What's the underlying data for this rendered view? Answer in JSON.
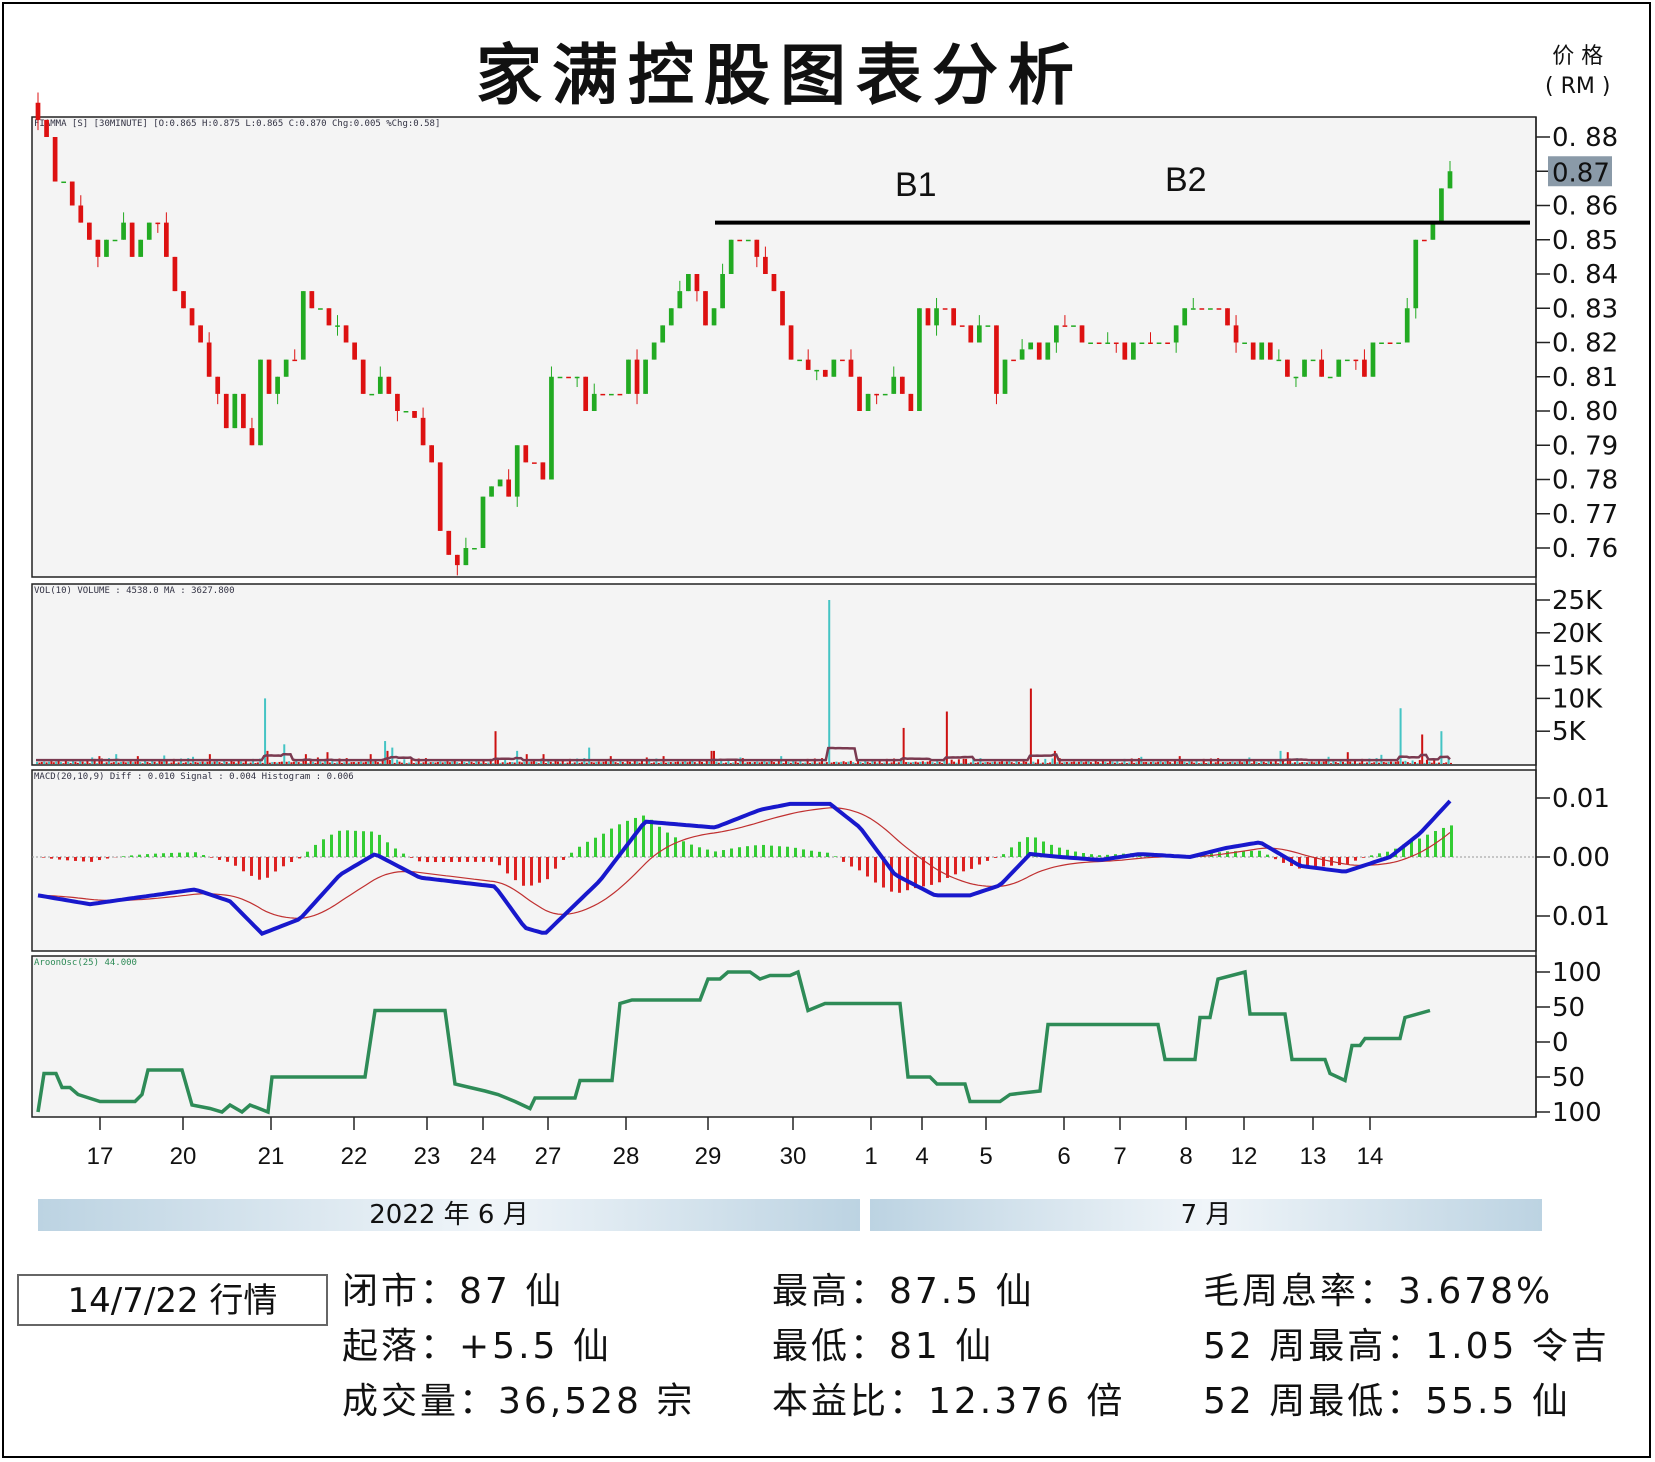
{
  "title": "家满控股图表分析",
  "price_axis_label": [
    "价 格",
    "( RM )"
  ],
  "chart_data": [
    {
      "type": "candlestick",
      "header": "FIAMMA [S] [30MINUTE] [O:0.865 H:0.875 L:0.865 C:0.870 Chg:0.005 %Chg:0.58]",
      "yticks": [
        "0.88",
        "0.87",
        "0.86",
        "0.85",
        "0.84",
        "0.83",
        "0.82",
        "0.81",
        "0.80",
        "0.79",
        "0.78",
        "0.77",
        "0.76"
      ],
      "ylim": [
        0.7555,
        0.8835
      ],
      "last_price": "0.87",
      "annotations": [
        "B1",
        "B2"
      ],
      "resistance_level": 0.855,
      "closes": [
        0.885,
        0.88,
        0.867,
        0.867,
        0.86,
        0.855,
        0.85,
        0.845,
        0.85,
        0.85,
        0.855,
        0.845,
        0.85,
        0.855,
        0.855,
        0.845,
        0.835,
        0.83,
        0.825,
        0.82,
        0.81,
        0.805,
        0.795,
        0.805,
        0.795,
        0.79,
        0.815,
        0.805,
        0.81,
        0.815,
        0.815,
        0.835,
        0.83,
        0.83,
        0.825,
        0.825,
        0.82,
        0.815,
        0.805,
        0.805,
        0.81,
        0.805,
        0.8,
        0.8,
        0.798,
        0.79,
        0.785,
        0.765,
        0.758,
        0.755,
        0.76,
        0.76,
        0.775,
        0.778,
        0.78,
        0.775,
        0.79,
        0.785,
        0.785,
        0.78,
        0.81,
        0.81,
        0.81,
        0.81,
        0.8,
        0.805,
        0.805,
        0.805,
        0.805,
        0.815,
        0.805,
        0.815,
        0.82,
        0.825,
        0.83,
        0.835,
        0.84,
        0.835,
        0.825,
        0.83,
        0.84,
        0.85,
        0.85,
        0.85,
        0.845,
        0.84,
        0.835,
        0.825,
        0.815,
        0.815,
        0.812,
        0.812,
        0.81,
        0.815,
        0.815,
        0.81,
        0.8,
        0.805,
        0.805,
        0.805,
        0.81,
        0.805,
        0.8,
        0.83,
        0.825,
        0.83,
        0.83,
        0.825,
        0.825,
        0.82,
        0.825,
        0.825,
        0.805,
        0.815,
        0.815,
        0.818,
        0.82,
        0.815,
        0.82,
        0.825,
        0.825,
        0.825,
        0.82,
        0.82,
        0.82,
        0.82,
        0.82,
        0.815,
        0.82,
        0.82,
        0.82,
        0.82,
        0.82,
        0.825,
        0.83,
        0.83,
        0.83,
        0.83,
        0.83,
        0.825,
        0.82,
        0.82,
        0.815,
        0.82,
        0.815,
        0.815,
        0.81,
        0.81,
        0.815,
        0.815,
        0.81,
        0.81,
        0.815,
        0.815,
        0.815,
        0.81,
        0.82,
        0.82,
        0.82,
        0.82,
        0.83,
        0.85,
        0.85,
        0.855,
        0.865,
        0.87
      ]
    },
    {
      "type": "bar",
      "header": "VOL(10) VOLUME : 4538.0   MA : 3627.800",
      "yticks": [
        "25K",
        "20K",
        "15K",
        "10K",
        "5K"
      ],
      "ylim": [
        0,
        27500
      ],
      "spikes": [
        [
          23,
          1000
        ],
        [
          26,
          1200
        ],
        [
          33,
          1500
        ],
        [
          42,
          1200
        ],
        [
          53,
          1300
        ],
        [
          65,
          1100
        ],
        [
          72,
          1500
        ],
        [
          95,
          10000
        ],
        [
          96,
          2000
        ],
        [
          103,
          3000
        ],
        [
          112,
          1500
        ],
        [
          117,
          1000
        ],
        [
          121,
          1800
        ],
        [
          139,
          1500
        ],
        [
          145,
          3500
        ],
        [
          146,
          2000
        ],
        [
          148,
          2500
        ],
        [
          191,
          5000
        ],
        [
          200,
          2000
        ],
        [
          204,
          1500
        ],
        [
          211,
          1500
        ],
        [
          230,
          2500
        ],
        [
          239,
          1200
        ],
        [
          254,
          1000
        ],
        [
          261,
          1200
        ],
        [
          281,
          2000
        ],
        [
          282,
          2000
        ],
        [
          293,
          1000
        ],
        [
          310,
          1200
        ],
        [
          330,
          25000
        ],
        [
          361,
          5500
        ],
        [
          379,
          8000
        ],
        [
          386,
          800
        ],
        [
          414,
          11500
        ],
        [
          424,
          2000
        ],
        [
          460,
          1100
        ],
        [
          476,
          1200
        ],
        [
          505,
          1000
        ],
        [
          518,
          2000
        ],
        [
          521,
          1800
        ],
        [
          546,
          1800
        ],
        [
          538,
          1100
        ],
        [
          560,
          1400
        ],
        [
          568,
          8500
        ],
        [
          577,
          4500
        ],
        [
          585,
          5000
        ]
      ]
    },
    {
      "type": "line",
      "header": "MACD(20,10,9)  Diff : 0.010   Signal : 0.004   Histogram : 0.006",
      "yticks": [
        "0.01",
        "0.00",
        "0.01"
      ],
      "ylim": [
        -0.016,
        0.014
      ],
      "series": [
        {
          "name": "Diff",
          "color": "#1818cc"
        },
        {
          "name": "Signal",
          "color": "#c03030"
        },
        {
          "name": "Histogram",
          "color": "#33cc33"
        }
      ]
    },
    {
      "type": "line",
      "header": "AroonOsc(25) 44.000",
      "yticks": [
        "100",
        "50",
        "0",
        "50",
        "100"
      ],
      "ylim": [
        -106,
        106
      ],
      "color": "#2e8b57"
    }
  ],
  "x_axis": {
    "day_labels": [
      "17",
      "20",
      "21",
      "22",
      "23",
      "24",
      "27",
      "28",
      "29",
      "30",
      "1",
      "4",
      "5",
      "6",
      "7",
      "8",
      "12",
      "13",
      "14"
    ],
    "months": [
      "2022 年 6 月",
      "7 月"
    ]
  },
  "summary": {
    "date_label": "14/7/22 行情",
    "stats": [
      "闭市：87 仙",
      "最高：87.5 仙",
      "毛周息率：3.678%",
      "起落：+5.5 仙",
      "最低：81 仙",
      "52 周最高：1.05 令吉",
      "成交量：36,528 宗",
      "本益比：12.376 倍",
      "52 周最低：55.5 仙"
    ]
  },
  "colors": {
    "up": "#22aa22",
    "down": "#dd1111",
    "volume_up": "#44c4c4",
    "volume_down": "#cc1111",
    "volume_ma": "#7a3a50",
    "aroon": "#2e8b57",
    "panel_bg": "#f4f4f4"
  }
}
